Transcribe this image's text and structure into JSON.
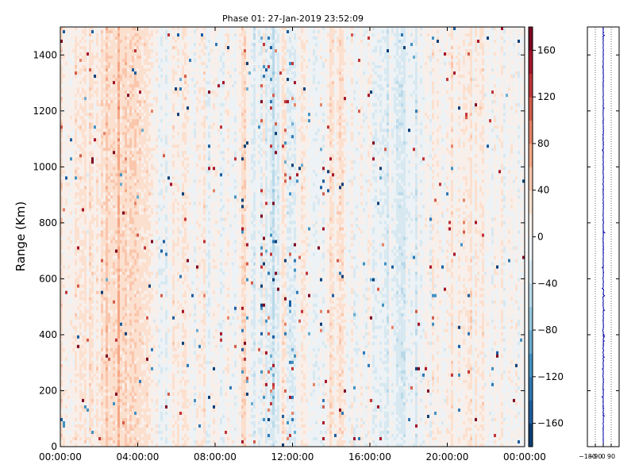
{
  "chart_data": [
    {
      "type": "heatmap",
      "title": "Phase 01: 27-Jan-2019 23:52:09",
      "ylabel": "Range (Km)",
      "xlabel": "",
      "x_tick_labels": [
        "00:00:00",
        "04:00:00",
        "08:00:00",
        "12:00:00",
        "16:00:00",
        "20:00:00",
        "00:00:00"
      ],
      "x_tick_hours": [
        0,
        4,
        8,
        12,
        16,
        20,
        24
      ],
      "xlim_hours": [
        0,
        24
      ],
      "y_ticks": [
        0,
        200,
        400,
        600,
        800,
        1000,
        1200,
        1400
      ],
      "ylim": [
        0,
        1500
      ],
      "colorbar": {
        "ticks": [
          -160,
          -120,
          -80,
          -40,
          0,
          40,
          80,
          120,
          160
        ],
        "tick_labels": [
          "−160",
          "−120",
          "−80",
          "−40",
          "0",
          "40",
          "80",
          "120",
          "160"
        ],
        "range": [
          -180,
          180
        ],
        "levels": 18,
        "colormap": "RdBu_r"
      },
      "time_profile_hours": [
        [
          0,
          4
        ],
        [
          0.5,
          8
        ],
        [
          1,
          14
        ],
        [
          1.5,
          22
        ],
        [
          2,
          28
        ],
        [
          2.5,
          34
        ],
        [
          3,
          38
        ],
        [
          3.5,
          36
        ],
        [
          4,
          32
        ],
        [
          4.5,
          22
        ],
        [
          5,
          6
        ],
        [
          5.3,
          -18
        ],
        [
          5.6,
          4
        ],
        [
          6,
          10
        ],
        [
          7,
          6
        ],
        [
          8,
          4
        ],
        [
          9,
          -4
        ],
        [
          9.5,
          30
        ],
        [
          10,
          -14
        ],
        [
          10.5,
          4
        ],
        [
          11,
          -26
        ],
        [
          11.5,
          20
        ],
        [
          12,
          -20
        ],
        [
          12.5,
          10
        ],
        [
          13,
          0
        ],
        [
          13.6,
          -14
        ],
        [
          14,
          14
        ],
        [
          15,
          6
        ],
        [
          16,
          0
        ],
        [
          16.5,
          -14
        ],
        [
          17,
          -22
        ],
        [
          18,
          -10
        ],
        [
          19,
          4
        ],
        [
          20,
          10
        ],
        [
          21,
          6
        ],
        [
          22,
          10
        ],
        [
          23,
          8
        ],
        [
          24,
          6
        ]
      ],
      "noisy_hour_bands": [
        [
          9.3,
          9.7
        ],
        [
          10.3,
          11.2
        ],
        [
          11.6,
          12.2
        ],
        [
          13.4,
          13.7
        ]
      ],
      "grid": false
    },
    {
      "type": "line",
      "x_tick_labels": [
        "−180",
        "−90",
        "0",
        "90"
      ],
      "x_ticks": [
        -180,
        -90,
        0,
        90
      ],
      "xlim": [
        -180,
        180
      ],
      "ylim": [
        0,
        1500
      ],
      "y_ticks": [
        0,
        200,
        400,
        600,
        800,
        1000,
        1200,
        1400
      ],
      "series_color": "#0000aa",
      "grid": "dotted-vertical"
    }
  ]
}
